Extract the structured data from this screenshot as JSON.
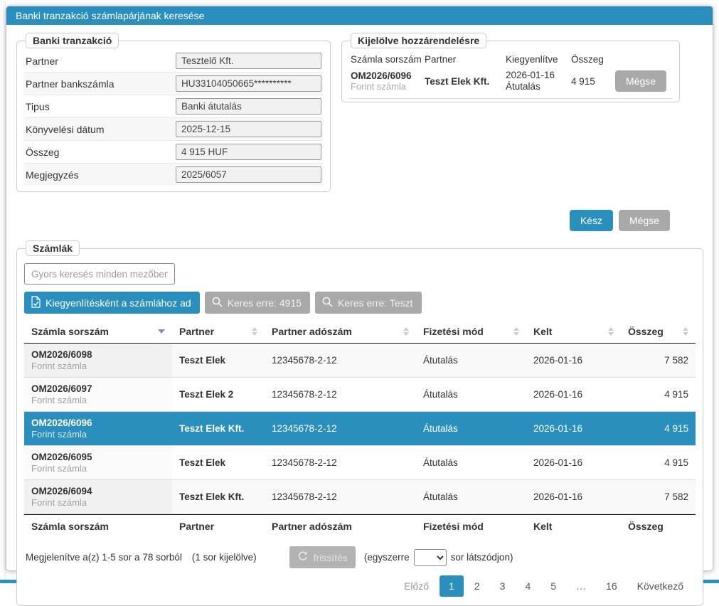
{
  "colors": {
    "accent": "#2a8fbd",
    "gray_button": "#a9a9a9",
    "selected_row": "#2a8fbd",
    "sort_active_arrow": "#8085c2"
  },
  "dialog": {
    "title": "Banki tranzakció számlapárjának keresése"
  },
  "transaction": {
    "legend": "Banki tranzakció",
    "fields": [
      {
        "name": "partner",
        "label": "Partner",
        "value": "Tesztelő Kft."
      },
      {
        "name": "partner-bank-account",
        "label": "Partner bankszámla",
        "value": "HU33104050665**********"
      },
      {
        "name": "type",
        "label": "Tipus",
        "value": "Banki átutalás"
      },
      {
        "name": "booking-date",
        "label": "Könyvelési dátum",
        "value": "2025-12-15"
      },
      {
        "name": "amount",
        "label": "Összeg",
        "value": "4 915 HUF"
      },
      {
        "name": "note",
        "label": "Megjegyzés",
        "value": "2025/6057"
      }
    ]
  },
  "selected_assignment": {
    "legend": "Kijelölve hozzárendelésre",
    "headers": [
      "Számla sorszám",
      "Partner",
      "Kiegyenlítve",
      "Összeg"
    ],
    "row": {
      "number": "OM2026/6096",
      "type": "Forint számla",
      "partner": "Teszt Elek Kft.",
      "settled_date": "2026-01-16",
      "settled_mode": "Átutalás",
      "amount": "4 915"
    },
    "cancel_label": "Mégse"
  },
  "actions": {
    "done_label": "Kész",
    "cancel_label": "Mégse"
  },
  "invoices": {
    "legend": "Számlák",
    "search": {
      "placeholder": "Gyors keresés minden mezőben.."
    },
    "toolbar": {
      "assign_label": "Kiegyenlítésként a számlához ad",
      "search_amount_label": "Keres erre: 4915",
      "search_partner_label": "Keres erre: Teszt"
    },
    "icons": {
      "assign": "invoice-add-icon",
      "search": "search-icon",
      "refresh": "refresh-icon"
    },
    "table": {
      "headers": [
        {
          "label": "Számla sorszám",
          "sort": "desc"
        },
        {
          "label": "Partner",
          "sort": "both"
        },
        {
          "label": "Partner adószám",
          "sort": "both"
        },
        {
          "label": "Fizetési mód",
          "sort": "both"
        },
        {
          "label": "Kelt",
          "sort": "both"
        },
        {
          "label": "Összeg",
          "sort": "both"
        }
      ],
      "rows": [
        {
          "number": "OM2026/6098",
          "type": "Forint számla",
          "partner": "Teszt Elek",
          "tax_number": "12345678-2-12",
          "payment_mode": "Átutalás",
          "date": "2026-01-16",
          "amount": "7 582",
          "selected": false
        },
        {
          "number": "OM2026/6097",
          "type": "Forint számla",
          "partner": "Teszt Elek 2",
          "tax_number": "12345678-2-12",
          "payment_mode": "Átutalás",
          "date": "2026-01-16",
          "amount": "4 915",
          "selected": false
        },
        {
          "number": "OM2026/6096",
          "type": "Forint számla",
          "partner": "Teszt Elek Kft.",
          "tax_number": "12345678-2-12",
          "payment_mode": "Átutalás",
          "date": "2026-01-16",
          "amount": "4 915",
          "selected": true
        },
        {
          "number": "OM2026/6095",
          "type": "Forint számla",
          "partner": "Teszt Elek",
          "tax_number": "12345678-2-12",
          "payment_mode": "Átutalás",
          "date": "2026-01-16",
          "amount": "4 915",
          "selected": false
        },
        {
          "number": "OM2026/6094",
          "type": "Forint számla",
          "partner": "Teszt Elek Kft.",
          "tax_number": "12345678-2-12",
          "payment_mode": "Átutalás",
          "date": "2026-01-16",
          "amount": "7 582",
          "selected": false
        }
      ],
      "footer_headers": [
        "Számla sorszám",
        "Partner",
        "Partner adószám",
        "Fizetési mód",
        "Kelt",
        "Összeg"
      ]
    },
    "info": {
      "showing": "Megjelenítve a(z) 1-5 sor a 78 sorból",
      "selected_count": "(1 sor kijelölve)",
      "refresh_label": "frissítés",
      "page_size_prefix": "(egyszerre",
      "page_size_suffix": "sor látszódjon)"
    },
    "pagination": {
      "prev_label": "Előző",
      "pages": [
        "1",
        "2",
        "3",
        "4",
        "5",
        "…",
        "16"
      ],
      "active_page": "1",
      "next_label": "Következő"
    }
  }
}
